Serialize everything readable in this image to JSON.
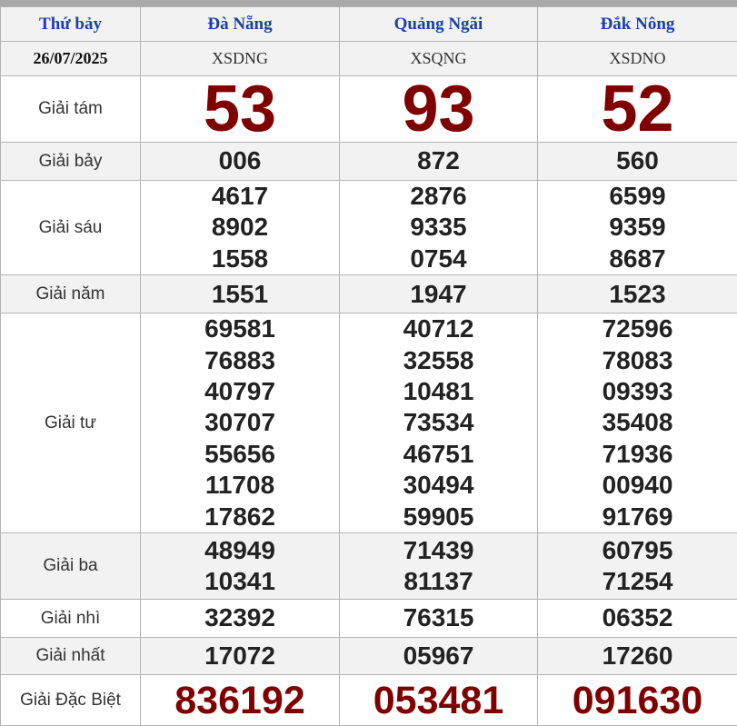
{
  "header": {
    "day": "Thứ bảy",
    "provinces": [
      "Đà Nẵng",
      "Quảng Ngãi",
      "Đắk Nông"
    ]
  },
  "date": "26/07/2025",
  "codes": [
    "XSDNG",
    "XSQNG",
    "XSDNO"
  ],
  "prizes": [
    {
      "label": "Giải tám",
      "results": [
        [
          "53"
        ],
        [
          "93"
        ],
        [
          "52"
        ]
      ]
    },
    {
      "label": "Giải bảy",
      "results": [
        [
          "006"
        ],
        [
          "872"
        ],
        [
          "560"
        ]
      ]
    },
    {
      "label": "Giải sáu",
      "results": [
        [
          "4617",
          "8902",
          "1558"
        ],
        [
          "2876",
          "9335",
          "0754"
        ],
        [
          "6599",
          "9359",
          "8687"
        ]
      ]
    },
    {
      "label": "Giải năm",
      "results": [
        [
          "1551"
        ],
        [
          "1947"
        ],
        [
          "1523"
        ]
      ]
    },
    {
      "label": "Giải tư",
      "results": [
        [
          "69581",
          "76883",
          "40797",
          "30707",
          "55656",
          "11708",
          "17862"
        ],
        [
          "40712",
          "32558",
          "10481",
          "73534",
          "46751",
          "30494",
          "59905"
        ],
        [
          "72596",
          "78083",
          "09393",
          "35408",
          "71936",
          "00940",
          "91769"
        ]
      ]
    },
    {
      "label": "Giải ba",
      "results": [
        [
          "48949",
          "10341"
        ],
        [
          "71439",
          "81137"
        ],
        [
          "60795",
          "71254"
        ]
      ]
    },
    {
      "label": "Giải nhì",
      "results": [
        [
          "32392"
        ],
        [
          "76315"
        ],
        [
          "06352"
        ]
      ]
    },
    {
      "label": "Giải nhất",
      "results": [
        [
          "17072"
        ],
        [
          "05967"
        ],
        [
          "17260"
        ]
      ]
    },
    {
      "label": "Giải Đặc Biệt",
      "results": [
        [
          "836192"
        ],
        [
          "053481"
        ],
        [
          "091630"
        ]
      ]
    }
  ],
  "colors": {
    "header_text": "#1a3fa8",
    "highlight_number": "#7f0000",
    "row_alt": "#f2f2f2"
  }
}
